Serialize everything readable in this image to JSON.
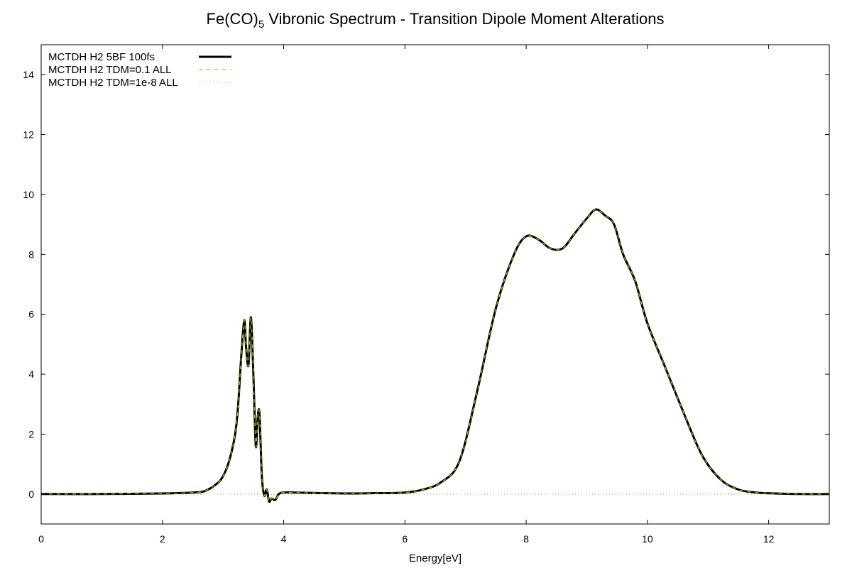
{
  "chart_data": {
    "type": "line",
    "title_main": "Fe(CO)",
    "title_sub": "5",
    "title_rest": " Vibronic Spectrum - Transition Dipole Moment Alterations",
    "xlabel": "Energy[eV]",
    "ylabel": "",
    "xlim": [
      0,
      13
    ],
    "ylim": [
      -1,
      15
    ],
    "xticks": [
      0,
      2,
      4,
      6,
      8,
      10,
      12
    ],
    "yticks": [
      0,
      2,
      4,
      6,
      8,
      10,
      12,
      14
    ],
    "grid": false,
    "legend_position": "top-left",
    "zero_line": true,
    "series": [
      {
        "name": "MCTDH H2 5BF 100fs",
        "color": "#000000",
        "style": "solid",
        "x": [
          0,
          1,
          2,
          2.5,
          2.7,
          2.9,
          3.0,
          3.1,
          3.2,
          3.25,
          3.3,
          3.35,
          3.38,
          3.42,
          3.46,
          3.5,
          3.54,
          3.57,
          3.6,
          3.64,
          3.68,
          3.72,
          3.76,
          3.8,
          3.86,
          3.92,
          4.0,
          4.2,
          5.0,
          5.5,
          6.0,
          6.3,
          6.6,
          6.9,
          7.2,
          7.5,
          7.8,
          8.0,
          8.2,
          8.4,
          8.6,
          8.8,
          9.0,
          9.15,
          9.3,
          9.45,
          9.6,
          9.8,
          10.0,
          10.3,
          10.6,
          10.9,
          11.2,
          11.5,
          11.8,
          12.1,
          12.5,
          13.0
        ],
        "y": [
          0.0,
          0.0,
          0.02,
          0.05,
          0.1,
          0.35,
          0.6,
          1.1,
          2.0,
          3.0,
          4.6,
          5.8,
          4.9,
          4.3,
          5.9,
          4.0,
          1.6,
          2.5,
          2.7,
          0.6,
          -0.05,
          0.15,
          -0.25,
          -0.15,
          -0.2,
          0.0,
          0.05,
          0.05,
          0.02,
          0.03,
          0.05,
          0.15,
          0.4,
          1.1,
          3.5,
          6.2,
          8.0,
          8.6,
          8.5,
          8.2,
          8.2,
          8.7,
          9.2,
          9.5,
          9.3,
          9.0,
          8.0,
          7.1,
          5.7,
          4.2,
          2.7,
          1.3,
          0.5,
          0.15,
          0.05,
          0.02,
          0.0,
          0.0
        ]
      },
      {
        "name": "MCTDH H2 TDM=0.1 ALL",
        "color": "#b8c400",
        "style": "dashed",
        "x": [
          0,
          1,
          2,
          2.5,
          2.7,
          2.9,
          3.0,
          3.1,
          3.2,
          3.25,
          3.3,
          3.35,
          3.38,
          3.42,
          3.46,
          3.5,
          3.54,
          3.57,
          3.6,
          3.64,
          3.68,
          3.72,
          3.76,
          3.8,
          3.86,
          3.92,
          4.0,
          4.2,
          5.0,
          5.5,
          6.0,
          6.3,
          6.6,
          6.9,
          7.2,
          7.5,
          7.8,
          8.0,
          8.2,
          8.4,
          8.6,
          8.8,
          9.0,
          9.15,
          9.3,
          9.45,
          9.6,
          9.8,
          10.0,
          10.3,
          10.6,
          10.9,
          11.2,
          11.5,
          11.8,
          12.1,
          12.5,
          13.0
        ],
        "y": [
          0.0,
          0.0,
          0.02,
          0.05,
          0.1,
          0.35,
          0.6,
          1.1,
          2.0,
          3.0,
          4.6,
          5.8,
          4.9,
          4.3,
          5.9,
          4.0,
          1.6,
          2.5,
          2.7,
          0.6,
          -0.05,
          0.15,
          -0.25,
          -0.15,
          -0.2,
          0.0,
          0.05,
          0.05,
          0.02,
          0.03,
          0.05,
          0.15,
          0.4,
          1.1,
          3.5,
          6.2,
          8.0,
          8.6,
          8.5,
          8.2,
          8.2,
          8.7,
          9.2,
          9.5,
          9.3,
          9.0,
          8.0,
          7.1,
          5.7,
          4.2,
          2.7,
          1.3,
          0.5,
          0.15,
          0.05,
          0.02,
          0.0,
          0.0
        ]
      },
      {
        "name": "MCTDH H2 TDM=1e-8 ALL",
        "color": "#e0a080",
        "style": "dotted",
        "x": [
          0,
          13
        ],
        "y": [
          0,
          0
        ]
      }
    ]
  }
}
